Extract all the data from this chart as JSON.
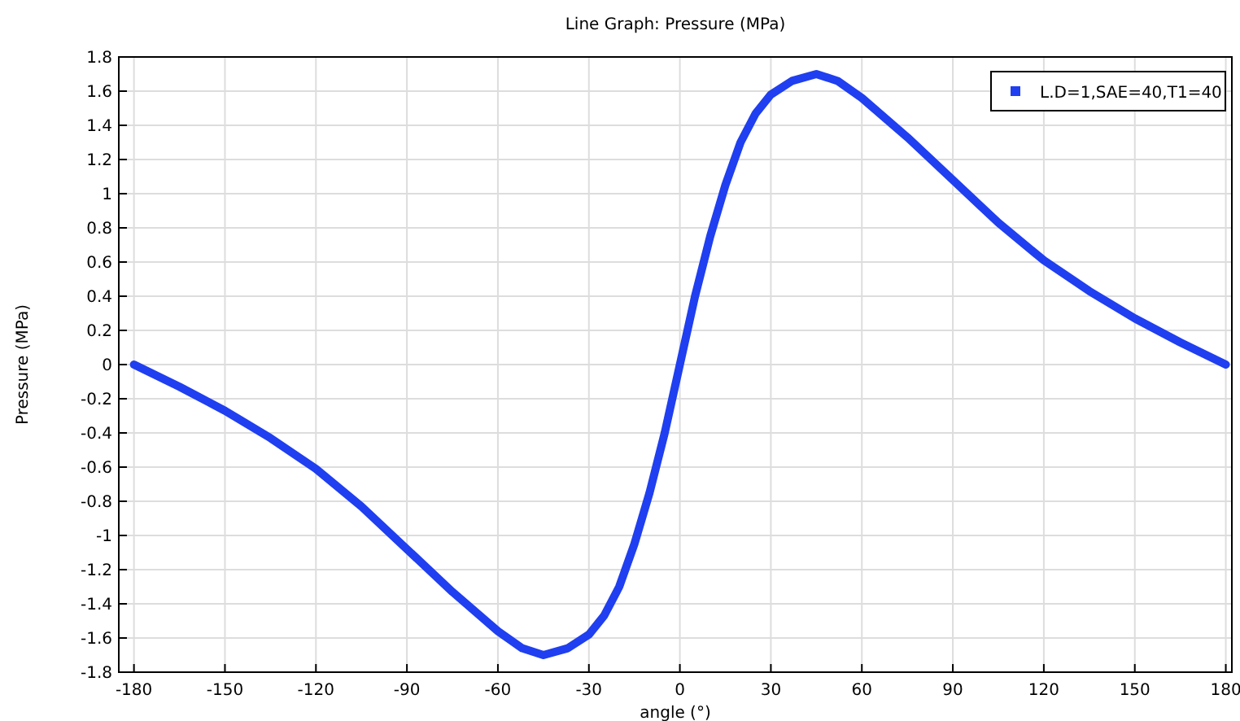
{
  "chart_data": {
    "type": "line",
    "title": "Line Graph: Pressure (MPa)",
    "xlabel": "angle (°)",
    "ylabel": "Pressure (MPa)",
    "x": [
      -180,
      -165,
      -150,
      -135,
      -120,
      -105,
      -90,
      -75,
      -60,
      -52,
      -45,
      -37,
      -30,
      -25,
      -20,
      -15,
      -10,
      -5,
      0,
      5,
      10,
      15,
      20,
      25,
      30,
      37,
      45,
      52,
      60,
      75,
      90,
      105,
      120,
      135,
      150,
      165,
      180
    ],
    "series": [
      {
        "name": "L.D=1,SAE=40,T1=40",
        "color": "#1f3ff0",
        "values": [
          0,
          -0.13,
          -0.27,
          -0.43,
          -0.61,
          -0.83,
          -1.08,
          -1.33,
          -1.56,
          -1.66,
          -1.7,
          -1.66,
          -1.58,
          -1.47,
          -1.3,
          -1.05,
          -0.75,
          -0.4,
          0,
          0.4,
          0.75,
          1.05,
          1.3,
          1.47,
          1.58,
          1.66,
          1.7,
          1.66,
          1.56,
          1.33,
          1.08,
          0.83,
          0.61,
          0.43,
          0.27,
          0.13,
          0
        ]
      }
    ],
    "xlim": [
      -185,
      182
    ],
    "ylim": [
      -1.8,
      1.8
    ],
    "xticks": [
      -180,
      -150,
      -120,
      -90,
      -60,
      -30,
      0,
      30,
      60,
      90,
      120,
      150,
      180
    ],
    "yticks": [
      -1.8,
      -1.6,
      -1.4,
      -1.2,
      -1,
      -0.8,
      -0.6,
      -0.4,
      -0.2,
      0,
      0.2,
      0.4,
      0.6,
      0.8,
      1,
      1.2,
      1.4,
      1.6,
      1.8
    ],
    "grid": true,
    "legend": "top right",
    "line_style": "solid"
  }
}
